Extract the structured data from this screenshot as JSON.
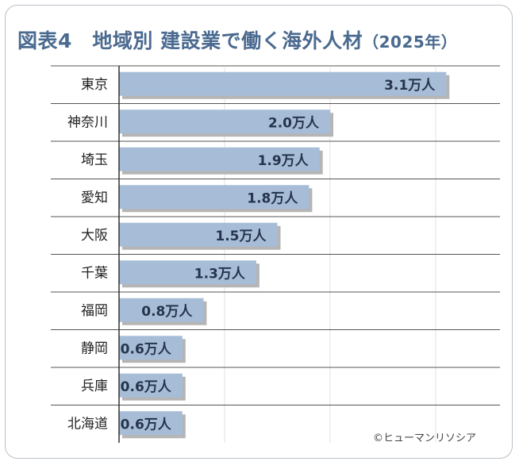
{
  "chart_data": {
    "type": "bar",
    "orientation": "horizontal",
    "title": "図表4　地域別 建設業で働く海外人材",
    "title_suffix": "（2025年）",
    "categories": [
      "東京",
      "神奈川",
      "埼玉",
      "愛知",
      "大阪",
      "千葉",
      "福岡",
      "静岡",
      "兵庫",
      "北海道"
    ],
    "values": [
      3.1,
      2.0,
      1.9,
      1.8,
      1.5,
      1.3,
      0.8,
      0.6,
      0.6,
      0.6
    ],
    "value_labels": [
      "3.1万人",
      "2.0万人",
      "1.9万人",
      "1.8万人",
      "1.5万人",
      "1.3万人",
      "0.8万人",
      "0.6万人",
      "0.6万人",
      "0.6万人"
    ],
    "unit": "万人",
    "xlim": [
      0,
      3.5
    ],
    "grid": true,
    "bar_color": "#a7bdd7",
    "shadow_color": "#b5b5b5"
  },
  "copyright": "©ヒューマンリソシア"
}
